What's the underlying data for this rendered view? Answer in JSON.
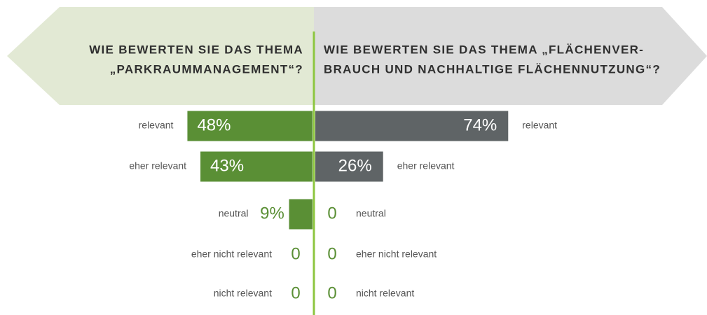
{
  "chart_data": {
    "type": "bar",
    "categories": [
      "relevant",
      "eher relevant",
      "neutral",
      "eher nicht relevant",
      "nicht relevant"
    ],
    "series": [
      {
        "title": [
          "WIE BEWERTEN SIE DAS THEMA",
          "„PARKRAUMMANAGEMENT“?"
        ],
        "color": "#5a8f35",
        "values": [
          48,
          43,
          9,
          0,
          0
        ],
        "value_labels": [
          "48%",
          "43%",
          "9%",
          "0",
          "0"
        ]
      },
      {
        "title": [
          "WIE BEWERTEN SIE DAS THEMA „FLÄCHENVER-",
          "BRAUCH UND NACHHALTIGE FLÄCHENNUTZUNG“?"
        ],
        "color": "#5f6466",
        "values": [
          74,
          26,
          0,
          0,
          0
        ],
        "value_labels": [
          "74%",
          "26%",
          "0",
          "0",
          "0"
        ]
      }
    ]
  }
}
